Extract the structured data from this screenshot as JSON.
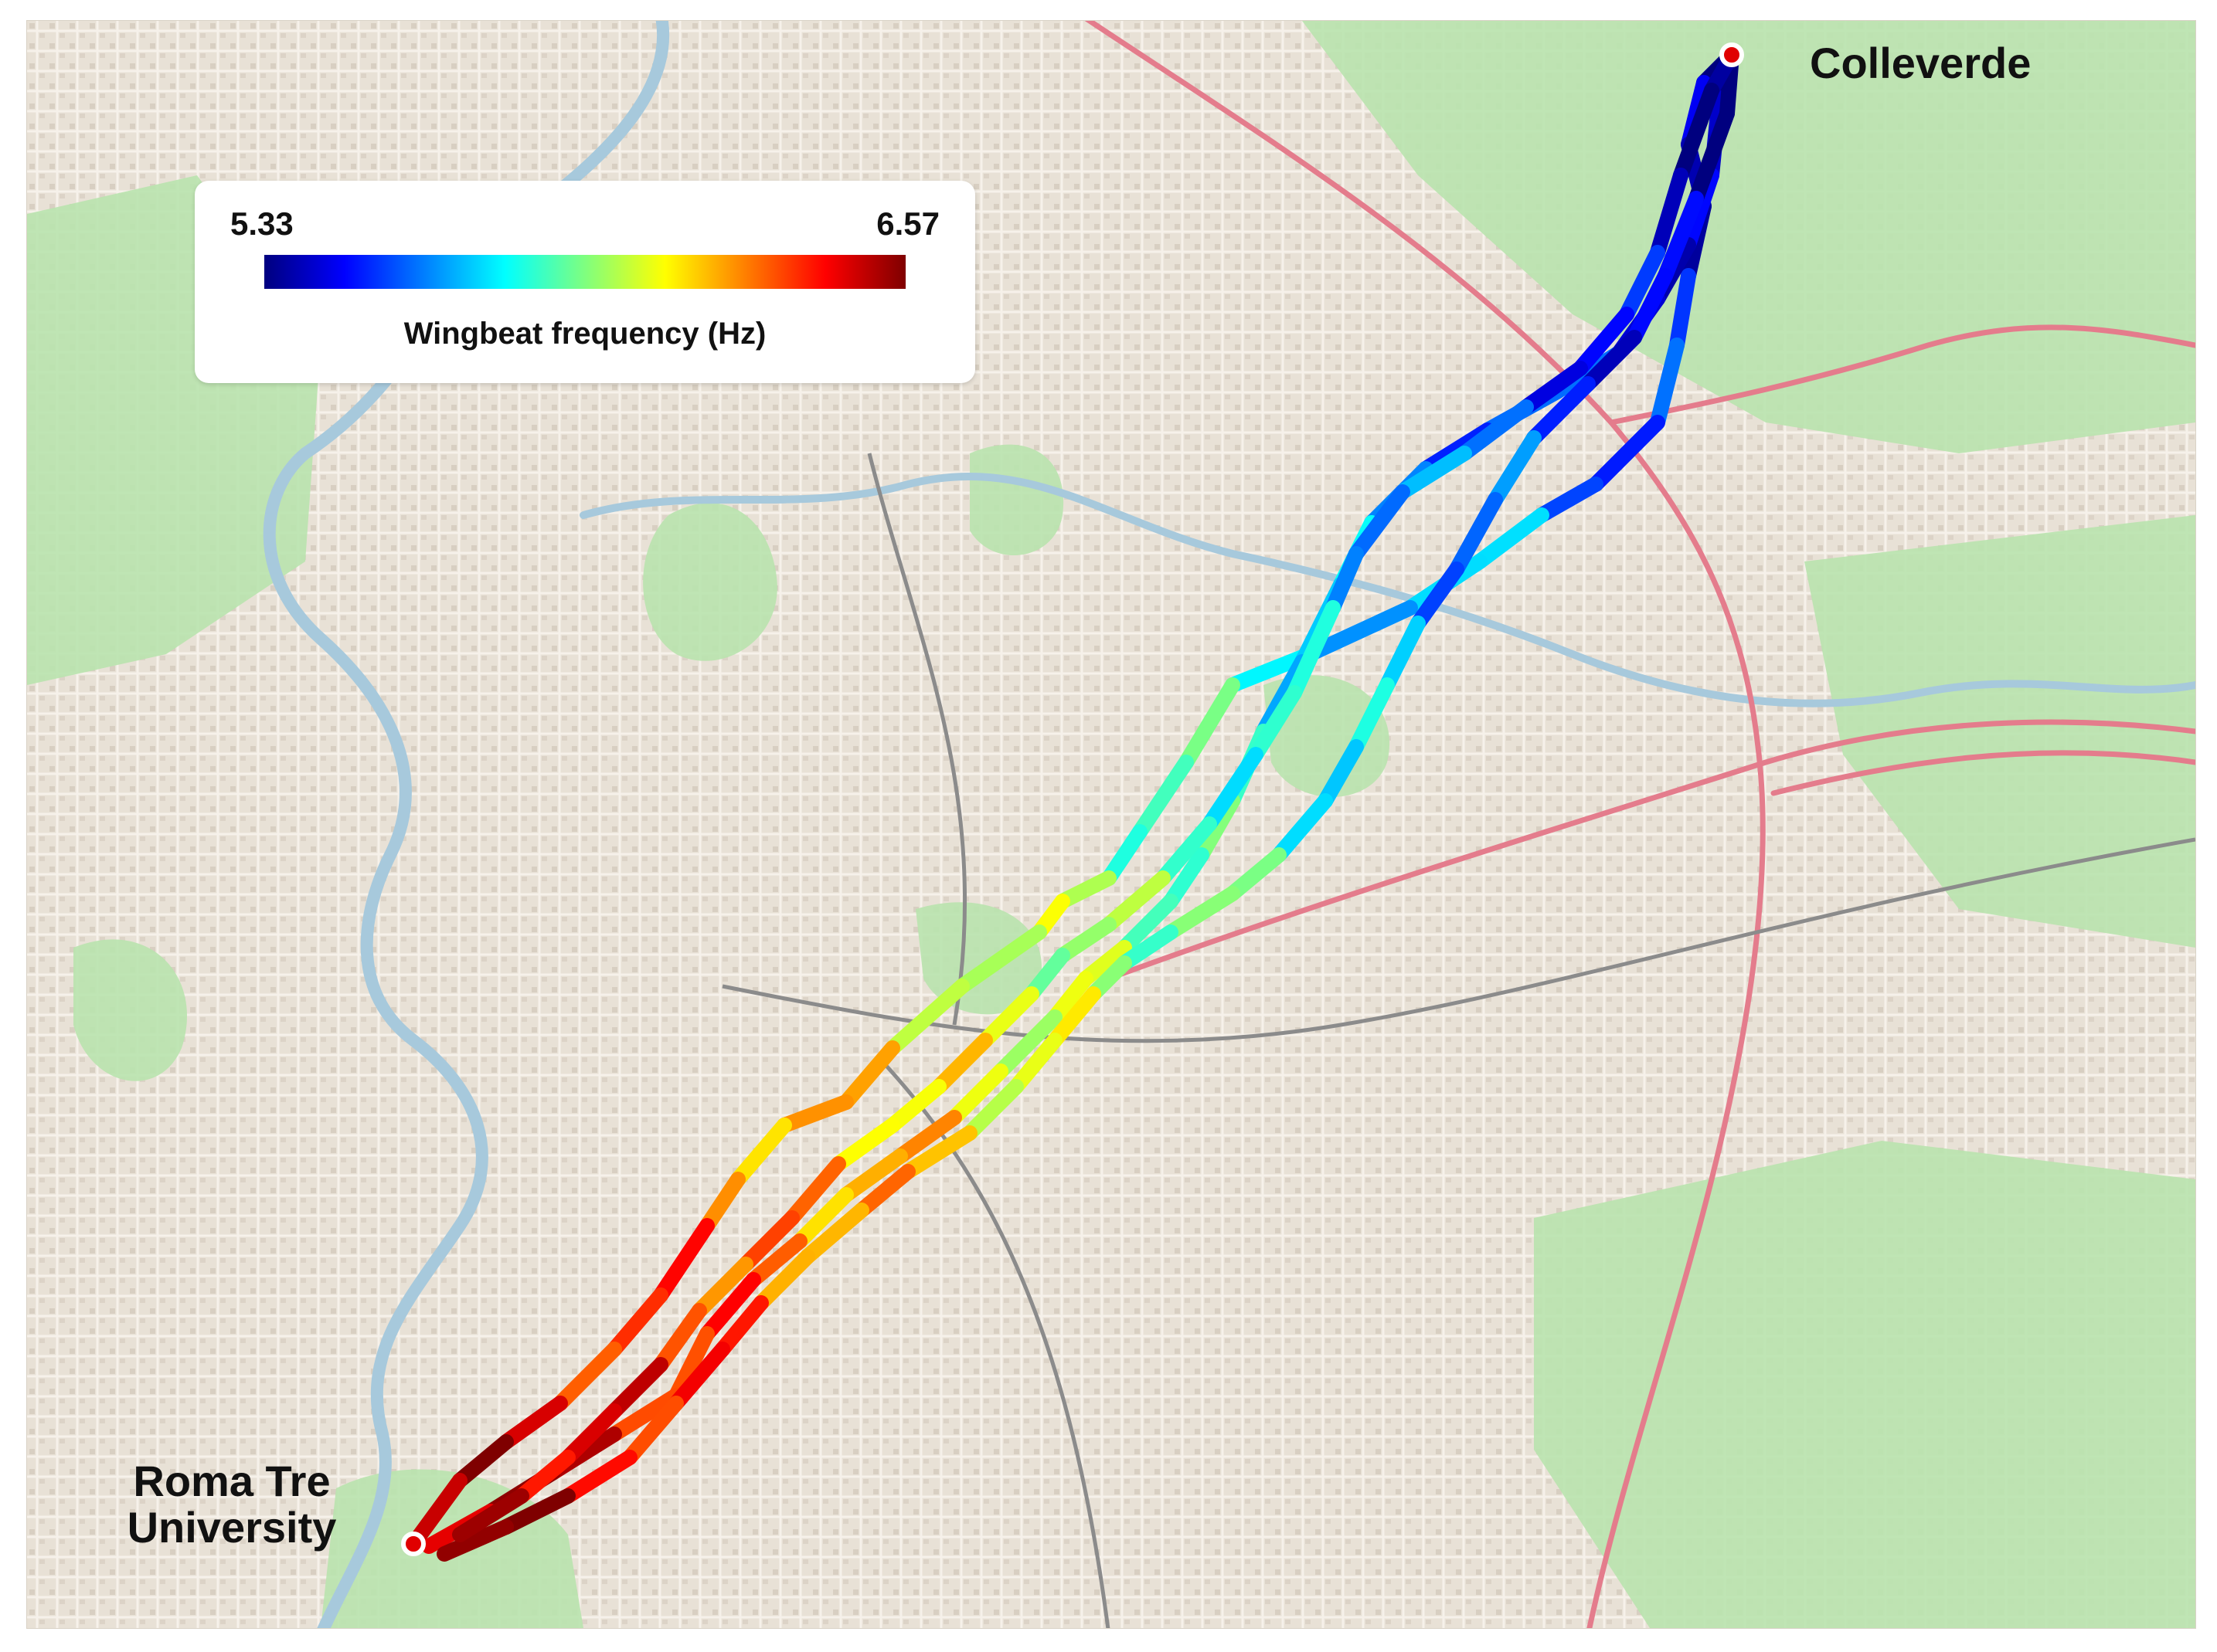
{
  "map": {
    "locations": {
      "start": {
        "label": "Colleverde"
      },
      "end": {
        "label_line1": "Roma Tre",
        "label_line2": "University"
      }
    }
  },
  "legend": {
    "min_label": "5.33",
    "max_label": "6.57",
    "title": "Wingbeat frequency (Hz)",
    "min_value": 5.33,
    "max_value": 6.57,
    "colormap": [
      "#00007f",
      "#0000ff",
      "#007fff",
      "#00ffff",
      "#7fff7f",
      "#ffff00",
      "#ff7f00",
      "#ff0000",
      "#7f0000"
    ]
  },
  "colors": {
    "water": "#a7c9dc",
    "park": "#b9e3ae",
    "railway": "#8b8b8b",
    "motorway": "#e47c8c",
    "marker": "#e00000"
  }
}
